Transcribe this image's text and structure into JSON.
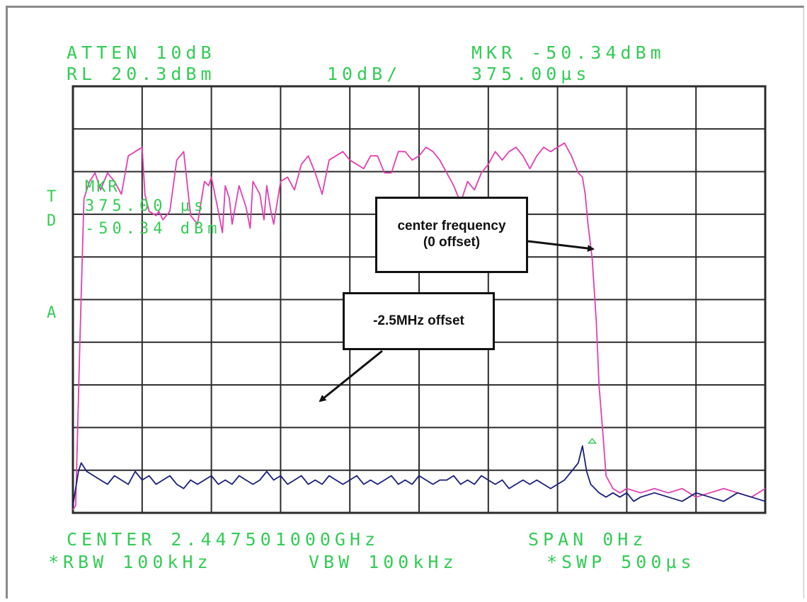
{
  "header": {
    "atten": "ATTEN 10dB",
    "ref_level": "RL 20.3dBm",
    "scale": "10dB/",
    "marker_amplitude": "MKR -50.34dBm",
    "marker_time": "375.00µs"
  },
  "side_labels": {
    "t": "T",
    "d": "D",
    "a": "A"
  },
  "marker_readout": {
    "label": "MKR",
    "time": "375.00 µs",
    "amplitude": "-50.34 dBm"
  },
  "footer": {
    "center": "CENTER 2.447501000GHz",
    "span": "SPAN 0Hz",
    "rbw": "*RBW 100kHz",
    "vbw": "VBW 100kHz",
    "sweep": "*SWP 500µs"
  },
  "annotations": {
    "center_frequency_line1": "center frequency",
    "center_frequency_line2": "(0 offset)",
    "offset": "-2.5MHz offset"
  },
  "colors": {
    "grid": "#2b2b2b",
    "text": "#33cc55",
    "center_trace": "#e040b0",
    "offset_trace": "#1a1f7a"
  },
  "chart_data": {
    "type": "line",
    "xlim": [
      0,
      500
    ],
    "ylim": [
      -79.7,
      20.3
    ],
    "grid": true,
    "series": [
      {
        "x": [
          0,
          2,
          5,
          8,
          12,
          16,
          20,
          25,
          30,
          35,
          40,
          45,
          50,
          52,
          55,
          60,
          62,
          65,
          70,
          75,
          80,
          85,
          90,
          95,
          98,
          100,
          105,
          108,
          110,
          113,
          115,
          120,
          125,
          128,
          130,
          135,
          138,
          140,
          143,
          145,
          150,
          155,
          160,
          165,
          170,
          175,
          180,
          185,
          190,
          195,
          200,
          205,
          210,
          215,
          220,
          225,
          230,
          235,
          240,
          245,
          250,
          255,
          260,
          265,
          270,
          275,
          280,
          285,
          290,
          295,
          300,
          305,
          310,
          315,
          320,
          325,
          330,
          335,
          340,
          345,
          350,
          355,
          360,
          365,
          368,
          370,
          372,
          375,
          378,
          380,
          383,
          385,
          390,
          395,
          400,
          410,
          420,
          430,
          440,
          450,
          460,
          470,
          480,
          490,
          500
        ],
        "y": [
          -79,
          -78,
          -40,
          -6,
          -2,
          0,
          -4,
          0,
          -2,
          -5,
          4,
          5,
          6,
          -5,
          -9,
          -10,
          -9,
          -11,
          -9,
          3,
          5,
          -10,
          -12,
          -2,
          -3,
          -1,
          -9,
          -14,
          -3,
          -6,
          -12,
          -3,
          -8,
          -13,
          -2,
          -5,
          -11,
          -3,
          -9,
          -12,
          -2,
          -1,
          -4,
          2,
          4,
          0,
          -5,
          3,
          4,
          5,
          3,
          2,
          1,
          4,
          4,
          0,
          0,
          5,
          5,
          3,
          4,
          6,
          5,
          3,
          0,
          -3,
          -7,
          -2,
          -4,
          0,
          2,
          5,
          3,
          5,
          6,
          4,
          1,
          4,
          6,
          5,
          6,
          7,
          4,
          0,
          -1,
          -5,
          -12,
          -20,
          -35,
          -50,
          -62,
          -71,
          -74,
          -75,
          -74,
          -75,
          -74,
          -75,
          -74,
          -76,
          -75,
          -74,
          -75,
          -76,
          -74
        ]
      },
      {
        "x": [
          0,
          2,
          4,
          6,
          10,
          15,
          20,
          25,
          30,
          35,
          40,
          45,
          50,
          55,
          60,
          65,
          70,
          75,
          80,
          85,
          90,
          95,
          100,
          105,
          110,
          115,
          120,
          125,
          130,
          135,
          140,
          145,
          150,
          155,
          160,
          165,
          170,
          175,
          180,
          185,
          190,
          195,
          200,
          205,
          210,
          215,
          220,
          225,
          230,
          235,
          240,
          245,
          250,
          255,
          260,
          265,
          270,
          275,
          280,
          285,
          290,
          295,
          300,
          305,
          310,
          315,
          320,
          325,
          330,
          335,
          340,
          345,
          350,
          355,
          360,
          365,
          368,
          371,
          374,
          377,
          380,
          385,
          390,
          395,
          400,
          405,
          410,
          420,
          430,
          440,
          450,
          460,
          470,
          480,
          490,
          500
        ],
        "y": [
          -78,
          -74,
          -70,
          -68,
          -70,
          -71,
          -72,
          -73,
          -71,
          -72,
          -73,
          -70,
          -72,
          -71,
          -73,
          -72,
          -71,
          -73,
          -74,
          -72,
          -73,
          -72,
          -71,
          -73,
          -72,
          -73,
          -71,
          -72,
          -73,
          -72,
          -70,
          -72,
          -71,
          -73,
          -72,
          -71,
          -73,
          -72,
          -73,
          -71,
          -72,
          -73,
          -72,
          -71,
          -73,
          -72,
          -73,
          -72,
          -71,
          -73,
          -72,
          -73,
          -71,
          -72,
          -73,
          -72,
          -72,
          -71,
          -73,
          -72,
          -73,
          -71,
          -72,
          -73,
          -72,
          -74,
          -73,
          -72,
          -73,
          -72,
          -73,
          -74,
          -73,
          -72,
          -70,
          -68,
          -64,
          -70,
          -73,
          -74,
          -75,
          -76,
          -75,
          -76,
          -75,
          -77,
          -76,
          -75,
          -76,
          -77,
          -75,
          -76,
          -77,
          -75,
          -76,
          -77
        ]
      }
    ]
  }
}
